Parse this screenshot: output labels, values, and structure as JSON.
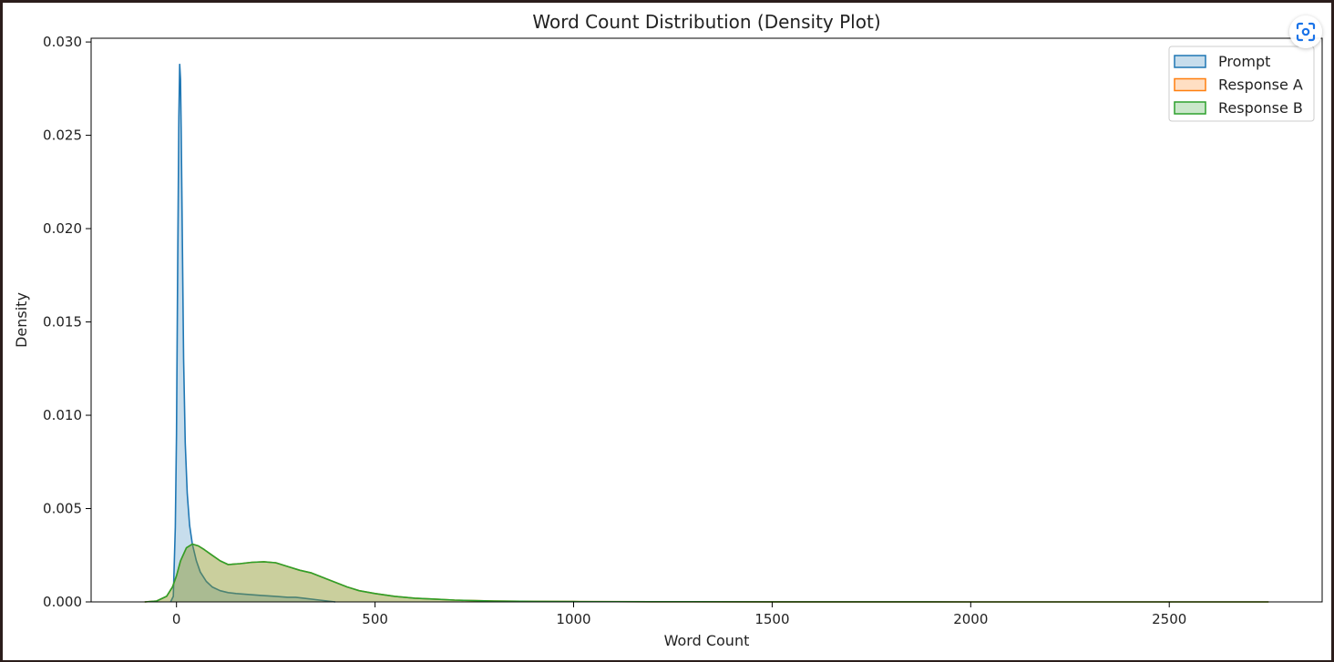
{
  "chart_data": {
    "type": "area",
    "title": "Word Count Distribution (Density Plot)",
    "xlabel": "Word Count",
    "ylabel": "Density",
    "xlim": [
      -215,
      2885
    ],
    "ylim": [
      0,
      0.0302
    ],
    "xticks": [
      0,
      500,
      1000,
      1500,
      2000,
      2500
    ],
    "xtick_labels": [
      "0",
      "500",
      "1000",
      "1500",
      "2000",
      "2500"
    ],
    "yticks": [
      0,
      0.005,
      0.01,
      0.015,
      0.02,
      0.025,
      0.03
    ],
    "ytick_labels": [
      "0.000",
      "0.005",
      "0.010",
      "0.015",
      "0.020",
      "0.025",
      "0.030"
    ],
    "grid": false,
    "legend_position": "top-right",
    "series": [
      {
        "name": "Prompt",
        "color": "#1f77b4",
        "x": [
          -15,
          -8,
          -3,
          0,
          3,
          6,
          8,
          10,
          12,
          15,
          18,
          22,
          27,
          33,
          40,
          50,
          60,
          75,
          90,
          110,
          130,
          150,
          180,
          210,
          250,
          280,
          300,
          320,
          360,
          400
        ],
        "y": [
          0,
          0.0003,
          0.004,
          0.009,
          0.018,
          0.026,
          0.0288,
          0.028,
          0.025,
          0.019,
          0.013,
          0.0085,
          0.0058,
          0.0041,
          0.0031,
          0.0022,
          0.0016,
          0.0011,
          0.0008,
          0.0006,
          0.0005,
          0.00045,
          0.0004,
          0.00035,
          0.0003,
          0.00025,
          0.00025,
          0.0002,
          0.0001,
          0
        ]
      },
      {
        "name": "Response A",
        "color": "#ff7f0e",
        "x": [
          -80,
          -50,
          -25,
          -10,
          0,
          10,
          25,
          40,
          55,
          70,
          90,
          110,
          130,
          160,
          190,
          220,
          250,
          280,
          310,
          340,
          370,
          400,
          430,
          460,
          500,
          550,
          600,
          650,
          700,
          750,
          800,
          900,
          1000,
          1200,
          1500,
          2000,
          2500,
          2750
        ],
        "y": [
          0,
          5e-05,
          0.0003,
          0.0008,
          0.0014,
          0.0022,
          0.0029,
          0.0031,
          0.003,
          0.0028,
          0.0025,
          0.0022,
          0.002,
          0.00205,
          0.00212,
          0.00215,
          0.0021,
          0.0019,
          0.0017,
          0.00155,
          0.0013,
          0.00105,
          0.0008,
          0.0006,
          0.00045,
          0.0003,
          0.0002,
          0.00015,
          0.0001,
          7e-05,
          5e-05,
          3e-05,
          2e-05,
          1e-05,
          5e-06,
          2e-06,
          1e-06,
          0
        ]
      },
      {
        "name": "Response B",
        "color": "#2ca02c",
        "x": [
          -80,
          -50,
          -25,
          -10,
          0,
          10,
          25,
          40,
          55,
          70,
          90,
          110,
          130,
          160,
          190,
          220,
          250,
          280,
          310,
          340,
          370,
          400,
          430,
          460,
          500,
          550,
          600,
          650,
          700,
          750,
          800,
          900,
          1000,
          1200,
          1500,
          2000,
          2500,
          2750
        ],
        "y": [
          0,
          5e-05,
          0.0003,
          0.0008,
          0.0014,
          0.0022,
          0.0029,
          0.0031,
          0.003,
          0.0028,
          0.0025,
          0.0022,
          0.002,
          0.00205,
          0.00212,
          0.00215,
          0.0021,
          0.0019,
          0.0017,
          0.00155,
          0.0013,
          0.00105,
          0.0008,
          0.0006,
          0.00045,
          0.0003,
          0.0002,
          0.00015,
          0.0001,
          7e-05,
          5e-05,
          3e-05,
          2e-05,
          1e-05,
          5e-06,
          2e-06,
          1e-06,
          0
        ]
      }
    ]
  },
  "toolbar": {
    "lens_icon": "lens-scan-icon",
    "lens_color": "#1a73e8"
  }
}
